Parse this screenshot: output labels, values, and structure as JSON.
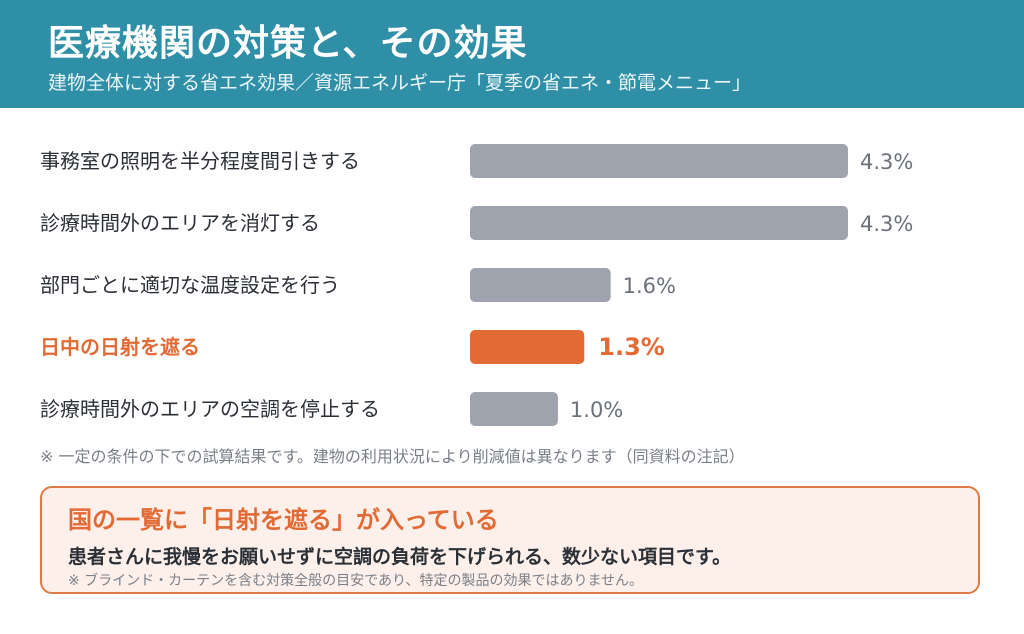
{
  "header": {
    "title": "医療機関の対策と、その効果",
    "subtitle": "建物全体に対する省エネ効果／資源エネルギー庁「夏季の省エネ・節電メニュー」"
  },
  "chart_data": {
    "type": "bar",
    "orientation": "horizontal",
    "categories": [
      "事務室の照明を半分程度間引きする",
      "診療時間外のエリアを消灯する",
      "部門ごとに適切な温度設定を行う",
      "日中の日射を遮る",
      "診療時間外のエリアの空調を停止する"
    ],
    "values": [
      4.3,
      4.3,
      1.6,
      1.3,
      1.0
    ],
    "value_labels": [
      "4.3%",
      "4.3%",
      "1.6%",
      "1.3%",
      "1.0%"
    ],
    "highlight_index": 3,
    "colors": {
      "default": "#9ea3ad",
      "highlight": "#e26a34"
    },
    "xlim": [
      0,
      4.3
    ],
    "grid": false
  },
  "note": "※ 一定の条件の下での試算結果です。建物の利用状況により削減値は異なります（同資料の注記）",
  "callout": {
    "title": "国の一覧に「日射を遮る」が入っている",
    "body": "患者さんに我慢をお願いせずに空調の負荷を下げられる、数少ない項目です。",
    "note": "※ ブラインド・カーテンを含む対策全般の目安であり、特定の製品の効果ではありません。"
  }
}
